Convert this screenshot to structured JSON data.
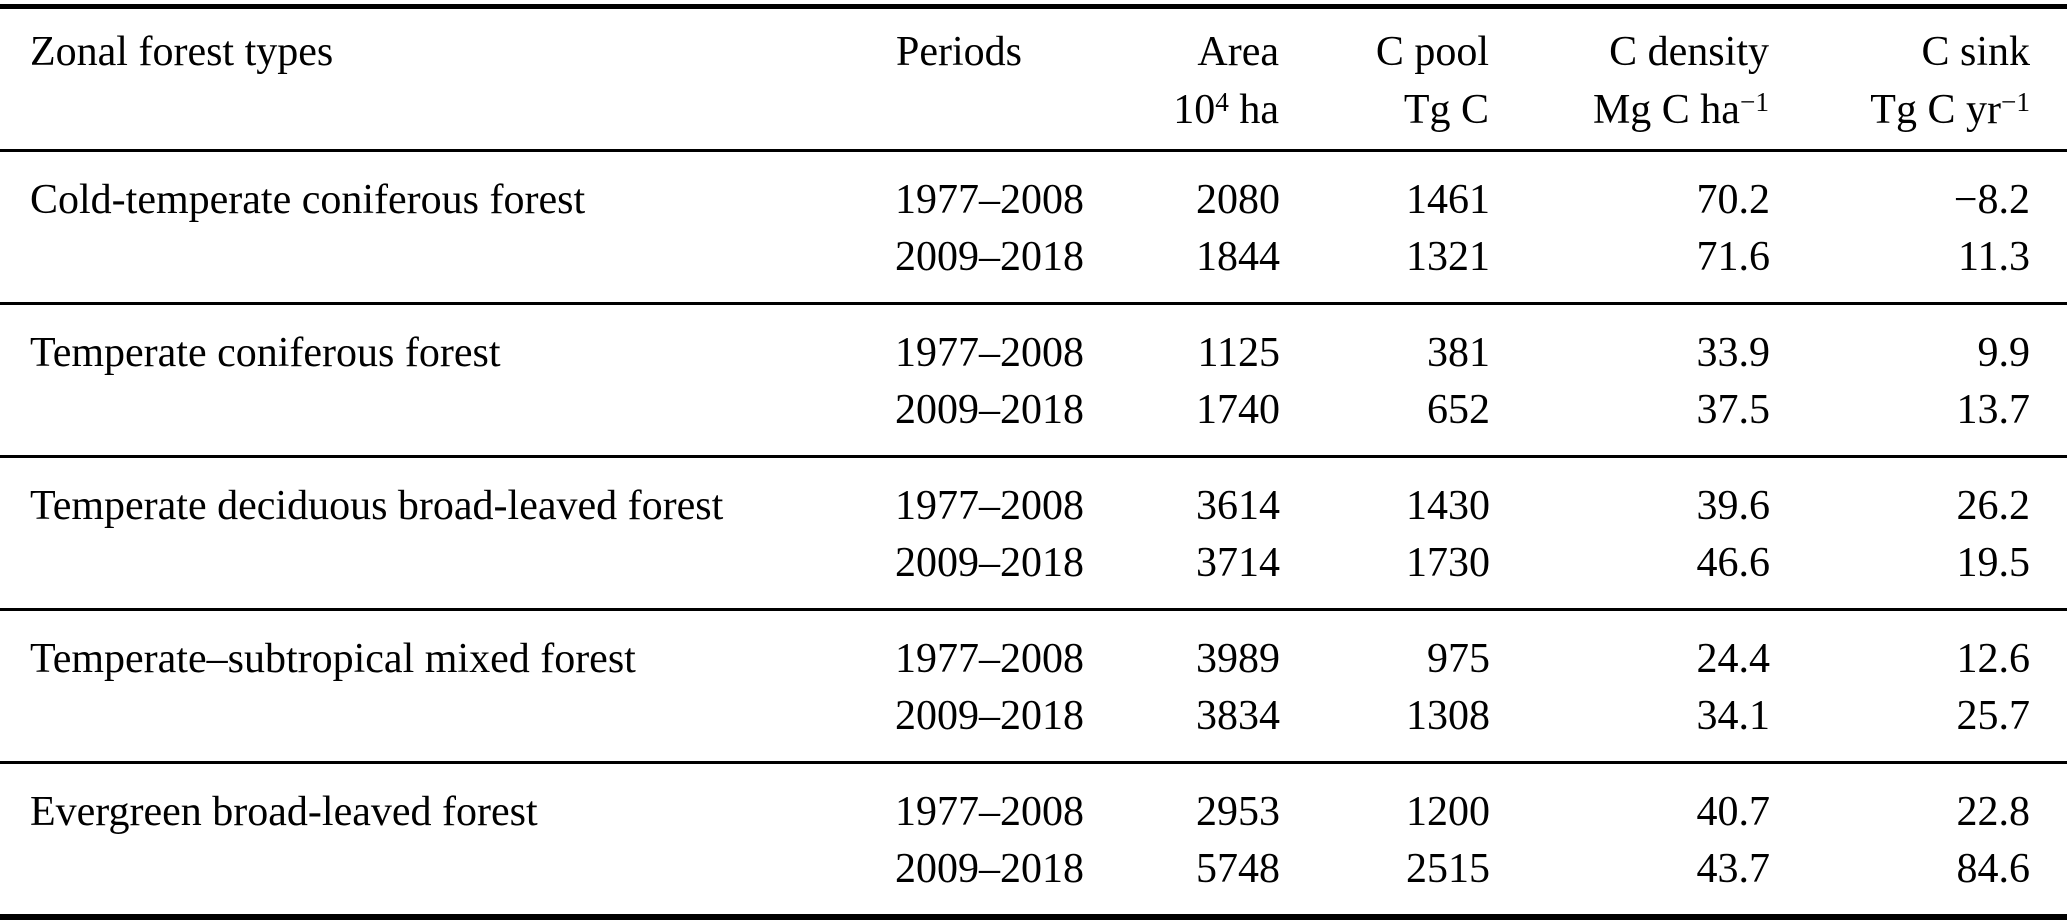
{
  "table": {
    "columns": [
      {
        "label": "Zonal forest types",
        "unit_pre": "",
        "unit_sup": "",
        "unit_post": ""
      },
      {
        "label": "Periods",
        "unit_pre": "",
        "unit_sup": "",
        "unit_post": ""
      },
      {
        "label": "Area",
        "unit_pre": "10",
        "unit_sup": "4",
        "unit_post": " ha"
      },
      {
        "label": "C pool",
        "unit_pre": "Tg C",
        "unit_sup": "",
        "unit_post": ""
      },
      {
        "label": "C density",
        "unit_pre": "Mg C ha",
        "unit_sup": "−1",
        "unit_post": ""
      },
      {
        "label": "C sink",
        "unit_pre": "Tg C yr",
        "unit_sup": "−1",
        "unit_post": ""
      }
    ],
    "groups": [
      {
        "type": "Cold-temperate coniferous forest",
        "rows": [
          {
            "period": "1977–2008",
            "area": "2080",
            "c_pool": "1461",
            "c_density": "70.2",
            "c_sink": "−8.2"
          },
          {
            "period": "2009–2018",
            "area": "1844",
            "c_pool": "1321",
            "c_density": "71.6",
            "c_sink": "11.3"
          }
        ]
      },
      {
        "type": "Temperate coniferous forest",
        "rows": [
          {
            "period": "1977–2008",
            "area": "1125",
            "c_pool": "381",
            "c_density": "33.9",
            "c_sink": "9.9"
          },
          {
            "period": "2009–2018",
            "area": "1740",
            "c_pool": "652",
            "c_density": "37.5",
            "c_sink": "13.7"
          }
        ]
      },
      {
        "type": "Temperate deciduous broad-leaved forest",
        "rows": [
          {
            "period": "1977–2008",
            "area": "3614",
            "c_pool": "1430",
            "c_density": "39.6",
            "c_sink": "26.2"
          },
          {
            "period": "2009–2018",
            "area": "3714",
            "c_pool": "1730",
            "c_density": "46.6",
            "c_sink": "19.5"
          }
        ]
      },
      {
        "type": "Temperate–subtropical mixed forest",
        "rows": [
          {
            "period": "1977–2008",
            "area": "3989",
            "c_pool": "975",
            "c_density": "24.4",
            "c_sink": "12.6"
          },
          {
            "period": "2009–2018",
            "area": "3834",
            "c_pool": "1308",
            "c_density": "34.1",
            "c_sink": "25.7"
          }
        ]
      },
      {
        "type": "Evergreen broad-leaved forest",
        "rows": [
          {
            "period": "1977–2008",
            "area": "2953",
            "c_pool": "1200",
            "c_density": "40.7",
            "c_sink": "22.8"
          },
          {
            "period": "2009–2018",
            "area": "5748",
            "c_pool": "2515",
            "c_density": "43.7",
            "c_sink": "84.6"
          }
        ]
      }
    ]
  }
}
